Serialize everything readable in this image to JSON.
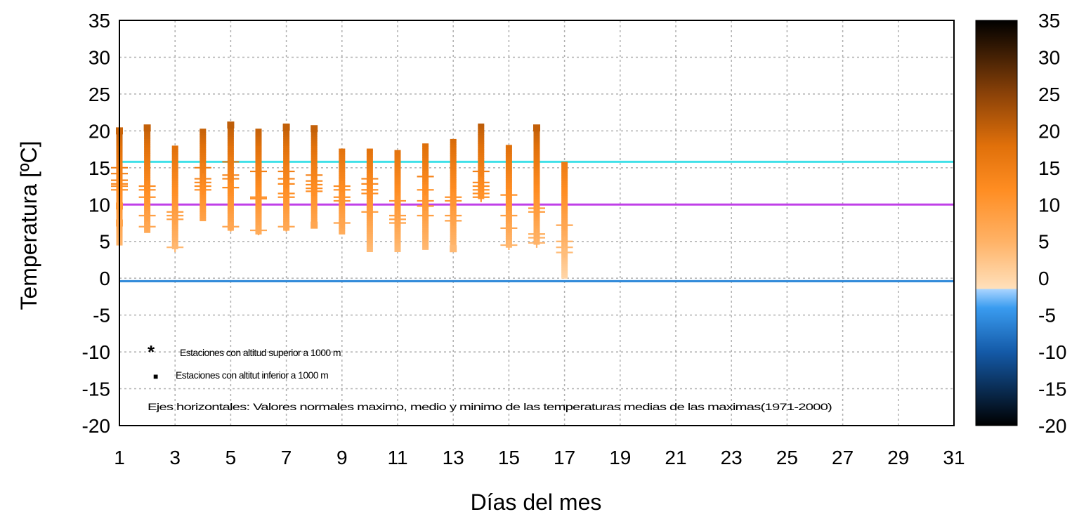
{
  "chart_data": {
    "type": "scatter",
    "xlabel": "Días del mes",
    "ylabel": "Temperatura  [ºC]",
    "xlim": [
      1,
      31
    ],
    "ylim": [
      -20,
      35
    ],
    "xticks": [
      1,
      3,
      5,
      7,
      9,
      11,
      13,
      15,
      17,
      19,
      21,
      23,
      25,
      27,
      29,
      31
    ],
    "yticks": [
      -20,
      -15,
      -10,
      -5,
      0,
      5,
      10,
      15,
      20,
      25,
      30,
      35
    ],
    "grid": true,
    "horizontal_lines": [
      {
        "value": 15.8,
        "color": "#40e0e8"
      },
      {
        "value": 10.0,
        "color": "#c040e8"
      },
      {
        "value": -0.4,
        "color": "#2a86d8"
      }
    ],
    "colorbar": {
      "ticks": [
        -20,
        -15,
        -10,
        -5,
        0,
        5,
        10,
        15,
        20,
        25,
        30,
        35
      ],
      "range": [
        -20,
        35
      ],
      "stops": [
        {
          "value": -20,
          "color": "#000000"
        },
        {
          "value": -10,
          "color": "#145aa8"
        },
        {
          "value": -4,
          "color": "#3a9cf0"
        },
        {
          "value": -1.5,
          "color": "#a9d4ff"
        },
        {
          "value": -1.4,
          "color": "#ffe0bb"
        },
        {
          "value": 5,
          "color": "#ffb266"
        },
        {
          "value": 12,
          "color": "#ff8d22"
        },
        {
          "value": 18,
          "color": "#e0700a"
        },
        {
          "value": 25,
          "color": "#8b4208"
        },
        {
          "value": 35,
          "color": "#000000"
        }
      ]
    },
    "legend": {
      "items": [
        {
          "marker": "*",
          "text": "Estaciones con altitud superior a 1000 m"
        },
        {
          "marker": "■",
          "text": "Estaciones con altitut inferior a 1000 m"
        }
      ],
      "note": "Ejes horizontales: Valores normales maximo, medio y minimo de las temperaturas medias de las maximas(1971-2000)"
    },
    "days": [
      {
        "day": 1,
        "max": 20.2,
        "min": 4.5
      },
      {
        "day": 2,
        "max": 20.6,
        "min": 6.2
      },
      {
        "day": 3,
        "max": 18.0,
        "min": 4.0
      },
      {
        "day": 4,
        "max": 20.3,
        "min": 7.8
      },
      {
        "day": 5,
        "max": 21.1,
        "min": 6.5
      },
      {
        "day": 6,
        "max": 20.3,
        "min": 6.0
      },
      {
        "day": 7,
        "max": 21.0,
        "min": 6.5
      },
      {
        "day": 8,
        "max": 20.5,
        "min": 7.0
      },
      {
        "day": 9,
        "max": 17.6,
        "min": 6.0
      },
      {
        "day": 10,
        "max": 17.6,
        "min": 3.6
      },
      {
        "day": 11,
        "max": 17.4,
        "min": 3.6
      },
      {
        "day": 12,
        "max": 18.3,
        "min": 3.9
      },
      {
        "day": 13,
        "max": 18.9,
        "min": 3.7
      },
      {
        "day": 14,
        "max": 21.0,
        "min": 10.8
      },
      {
        "day": 15,
        "max": 18.1,
        "min": 4.2
      },
      {
        "day": 16,
        "max": 20.6,
        "min": 4.6
      },
      {
        "day": 17,
        "max": 15.8,
        "min": 0.0
      }
    ],
    "stations": [
      {
        "day": 1,
        "marker": "+",
        "values": [
          15.0,
          14.2,
          13.3,
          12.8,
          12.5,
          12.0
        ]
      },
      {
        "day": 1,
        "marker": "■",
        "values": [
          20.0,
          9.8,
          7.5
        ]
      },
      {
        "day": 2,
        "marker": "+",
        "values": [
          12.5,
          12.0,
          11.0,
          8.5,
          7.0
        ]
      },
      {
        "day": 2,
        "marker": "■",
        "values": [
          20.4
        ]
      },
      {
        "day": 3,
        "marker": "+",
        "values": [
          9.0,
          8.5,
          8.0,
          4.2
        ]
      },
      {
        "day": 4,
        "marker": "+",
        "values": [
          15.0,
          13.5,
          13.0,
          12.5,
          12.0
        ]
      },
      {
        "day": 5,
        "marker": "+",
        "values": [
          15.8,
          14.0,
          13.5,
          12.3,
          7.0
        ]
      },
      {
        "day": 5,
        "marker": "■",
        "values": [
          20.8
        ]
      },
      {
        "day": 6,
        "marker": "+",
        "values": [
          14.5,
          11.0,
          10.8,
          6.5
        ]
      },
      {
        "day": 7,
        "marker": "+",
        "values": [
          14.5,
          13.5,
          12.8,
          11.5,
          11.0,
          7.0
        ]
      },
      {
        "day": 7,
        "marker": "■",
        "values": [
          20.5
        ]
      },
      {
        "day": 8,
        "marker": "+",
        "values": [
          14.0,
          13.2,
          12.7,
          12.2,
          11.8
        ]
      },
      {
        "day": 8,
        "marker": "■",
        "values": [
          20.3,
          7.2
        ]
      },
      {
        "day": 9,
        "marker": "+",
        "values": [
          12.5,
          12.0,
          11.0,
          10.5,
          7.5
        ]
      },
      {
        "day": 10,
        "marker": "+",
        "values": [
          13.5,
          12.8,
          12.0,
          11.5,
          9.0
        ]
      },
      {
        "day": 11,
        "marker": "+",
        "values": [
          10.5,
          8.5,
          8.0,
          7.5
        ]
      },
      {
        "day": 12,
        "marker": "+",
        "values": [
          13.8,
          12.0,
          10.5,
          9.8,
          8.5
        ]
      },
      {
        "day": 13,
        "marker": "+",
        "values": [
          11.0,
          10.5,
          8.5,
          7.8
        ]
      },
      {
        "day": 13,
        "marker": "■",
        "values": [
          4.0
        ]
      },
      {
        "day": 14,
        "marker": "+",
        "values": [
          14.5,
          13.0,
          12.5,
          12.0,
          11.5,
          11.0
        ]
      },
      {
        "day": 15,
        "marker": "+",
        "values": [
          11.3,
          8.5,
          6.8,
          4.5
        ]
      },
      {
        "day": 16,
        "marker": "+",
        "values": [
          9.5,
          9.0,
          6.0,
          5.5,
          4.8
        ]
      },
      {
        "day": 16,
        "marker": "■",
        "values": [
          20.4
        ]
      },
      {
        "day": 17,
        "marker": "+",
        "values": [
          7.2,
          5.0,
          4.2,
          3.5
        ]
      }
    ]
  }
}
